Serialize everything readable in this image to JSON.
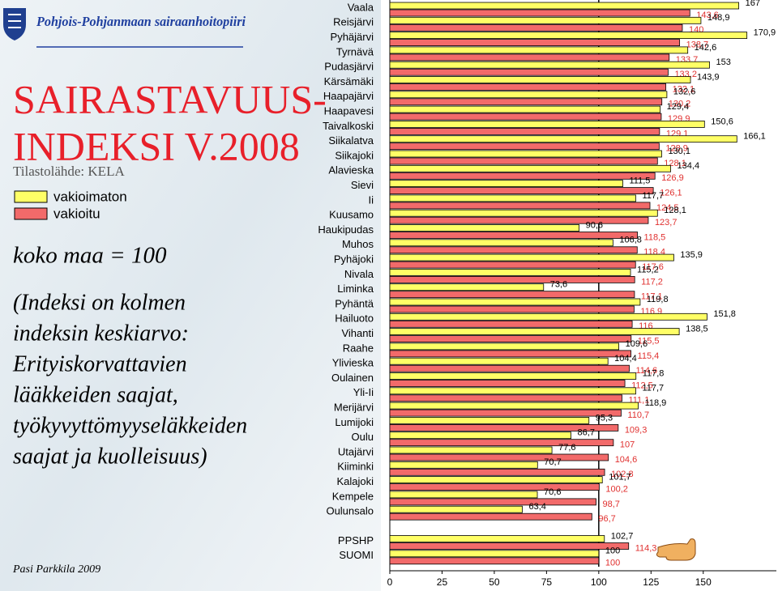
{
  "slide": {
    "header": "Pohjois-Pohjanmaan sairaanhoitopiiri",
    "title_lines": [
      "SAIRASTAVUUS-",
      "INDEKSI V.2008"
    ],
    "source": "Tilastolähde: KELA",
    "note": "koko maa = 100",
    "explanation_lines": [
      "(Indeksi on kolmen",
      "indeksin keskiarvo:",
      "Erityiskorvattavien",
      "lääkkeiden saajat,",
      "työkyvyttömyyseläkkeiden",
      "saajat ja kuolleisuus)"
    ],
    "author": "Pasi Parkkila 2009"
  },
  "chart_data": {
    "type": "hbar",
    "categories": [
      "Vaala",
      "Reisjärvi",
      "Pyhäjärvi",
      "Tyrnävä",
      "Pudasjärvi",
      "Kärsämäki",
      "Haapajärvi",
      "Haapavesi",
      "Taivalkoski",
      "Siikalatva",
      "Siikajoki",
      "Alavieska",
      "Sievi",
      "Ii",
      "Kuusamo",
      "Haukipudas",
      "Muhos",
      "Pyhäjoki",
      "Nivala",
      "Liminka",
      "Pyhäntä",
      "Hailuoto",
      "Vihanti",
      "Raahe",
      "Ylivieska",
      "Oulainen",
      "Yli-Ii",
      "Merijärvi",
      "Lumijoki",
      "Oulu",
      "Utajärvi",
      "Kiiminki",
      "Kalajoki",
      "Kempele",
      "Oulunsalo",
      "PPSHP",
      "SUOMI"
    ],
    "series": [
      {
        "name": "vakioimaton",
        "color": "#ffff66",
        "label_color": "#000000",
        "values": [
          167,
          148.9,
          170.9,
          142.6,
          153,
          143.9,
          132.6,
          129.4,
          150.6,
          166.1,
          130.1,
          134.4,
          111.5,
          117.7,
          128.1,
          90.6,
          106.8,
          135.9,
          115.2,
          73.6,
          119.8,
          151.8,
          138.5,
          109.6,
          104.4,
          117.8,
          117.7,
          118.9,
          95.3,
          86.7,
          77.6,
          70.7,
          101.7,
          70.6,
          63.4,
          102.7,
          100
        ],
        "value_labels": [
          "167",
          "148,9",
          "170,9",
          "142,6",
          "153",
          "143,9",
          "132,6",
          "129,4",
          "150,6",
          "166,1",
          "130,1",
          "134,4",
          "111,5",
          "117,7",
          "128,1",
          "90,6",
          "106,8",
          "135,9",
          "115,2",
          "73,6",
          "119,8",
          "151,8",
          "138,5",
          "109,6",
          "104,4",
          "117,8",
          "117,7",
          "118,9",
          "95,3",
          "86,7",
          "77,6",
          "70,7",
          "101,7",
          "70,6",
          "63,4",
          "102,7",
          "100"
        ]
      },
      {
        "name": "vakioitu",
        "color": "#f26a6a",
        "label_color": "#e0302f",
        "values": [
          143.6,
          140,
          138.7,
          133.7,
          133.2,
          132.1,
          130.2,
          129.9,
          129.1,
          128.9,
          128.1,
          126.9,
          126.1,
          124.5,
          123.7,
          118.5,
          118.4,
          117.6,
          117.2,
          117.1,
          116.9,
          116,
          115.5,
          115.4,
          114.6,
          112.5,
          111.1,
          110.7,
          109.3,
          107,
          104.6,
          102.8,
          100.2,
          98.7,
          96.7,
          114.3,
          100
        ],
        "value_labels": [
          "143,6",
          "140",
          "138,7",
          "133,7",
          "133,2",
          "132,1",
          "130,2",
          "129,9",
          "129,1",
          "128,9",
          "128,1",
          "126,9",
          "126,1",
          "124,5",
          "123,7",
          "118,5",
          "118,4",
          "117,6",
          "117,2",
          "117,1",
          "116,9",
          "116",
          "115,5",
          "115,4",
          "114,6",
          "112,5",
          "111,1",
          "110,7",
          "109,3",
          "107",
          "104,6",
          "102,8",
          "100,2",
          "98,7",
          "96,7",
          "114,3",
          "100"
        ]
      }
    ],
    "xlim": [
      0,
      185
    ],
    "xticks": [
      0,
      25,
      50,
      75,
      100,
      125,
      150
    ],
    "reference_line": 100
  }
}
